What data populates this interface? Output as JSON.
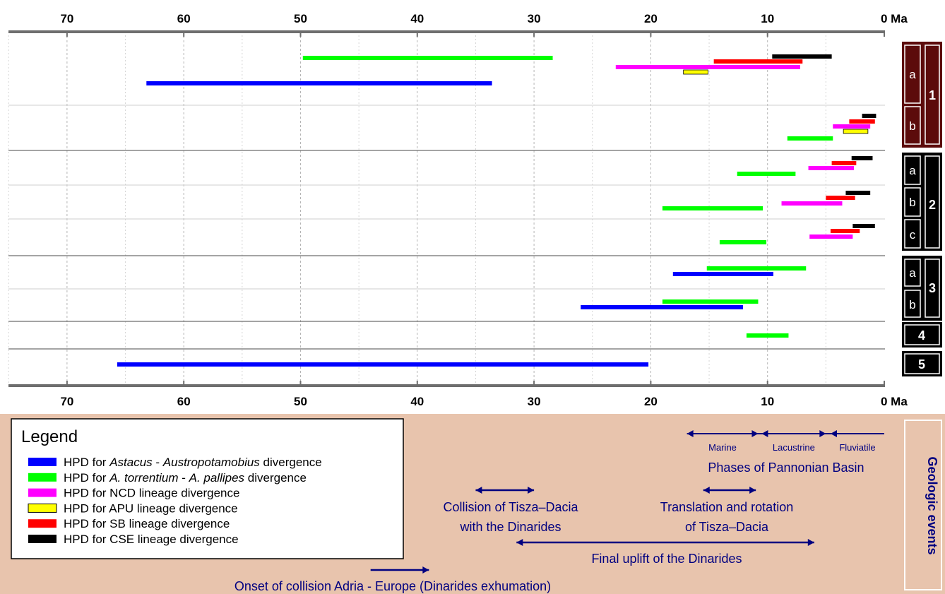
{
  "chart_data": {
    "type": "range-bar",
    "axis": {
      "unit_label": "Ma",
      "ticks": [
        70,
        60,
        50,
        40,
        30,
        20,
        10,
        0
      ],
      "xlim": [
        77,
        0
      ],
      "grid": "dotted vertical at every 5 Ma"
    },
    "colors": {
      "blue": "#0000ff",
      "green": "#00ff00",
      "magenta": "#ff00ff",
      "yellow": "#ffff00",
      "red": "#ff0000",
      "black": "#000000",
      "panel": "#e8c4ad",
      "navy": "#000080",
      "dark_red": "#5c0b0b"
    },
    "legend": {
      "title": "Legend",
      "placement": "bottom-left",
      "items": [
        {
          "color": "blue",
          "parts": [
            [
              "HPD for ",
              ""
            ],
            [
              "Astacus",
              "i"
            ],
            [
              " - ",
              ""
            ],
            [
              "Austropotamobius",
              "i"
            ],
            [
              " divergence",
              ""
            ]
          ]
        },
        {
          "color": "green",
          "parts": [
            [
              "HPD for ",
              ""
            ],
            [
              "A. torrentium",
              "i"
            ],
            [
              " - ",
              ""
            ],
            [
              "A. pallipes",
              "i"
            ],
            [
              " divergence",
              ""
            ]
          ]
        },
        {
          "color": "magenta",
          "parts": [
            [
              "HPD for NCD lineage divergence",
              ""
            ]
          ]
        },
        {
          "color": "yellow",
          "parts": [
            [
              "HPD for APU lineage divergence",
              ""
            ]
          ]
        },
        {
          "color": "red",
          "parts": [
            [
              "HPD for SB lineage divergence",
              ""
            ]
          ]
        },
        {
          "color": "black",
          "parts": [
            [
              "HPD for CSE lineage divergence",
              ""
            ]
          ]
        }
      ]
    },
    "scenarios": [
      {
        "id": "1",
        "sub": [
          {
            "id": "a",
            "bars": [
              {
                "color": "black",
                "from": 9.6,
                "to": 4.5
              },
              {
                "color": "red",
                "from": 14.6,
                "to": 7.0
              },
              {
                "color": "magenta",
                "from": 23.0,
                "to": 7.2
              },
              {
                "color": "green",
                "from": 49.8,
                "to": 28.4
              },
              {
                "color": "yellow",
                "from": 17.2,
                "to": 15.1
              },
              {
                "color": "blue",
                "from": 63.2,
                "to": 33.6
              }
            ]
          },
          {
            "id": "b",
            "bars": [
              {
                "color": "black",
                "from": 1.9,
                "to": 0.7
              },
              {
                "color": "red",
                "from": 3.0,
                "to": 0.8
              },
              {
                "color": "magenta",
                "from": 4.4,
                "to": 1.2
              },
              {
                "color": "yellow",
                "from": 3.5,
                "to": 1.4
              },
              {
                "color": "green",
                "from": 8.3,
                "to": 4.4
              }
            ]
          }
        ]
      },
      {
        "id": "2",
        "sub": [
          {
            "id": "a",
            "bars": [
              {
                "color": "black",
                "from": 2.8,
                "to": 1.0
              },
              {
                "color": "red",
                "from": 4.5,
                "to": 2.4
              },
              {
                "color": "magenta",
                "from": 6.5,
                "to": 2.6
              },
              {
                "color": "green",
                "from": 12.6,
                "to": 7.6
              }
            ]
          },
          {
            "id": "b",
            "bars": [
              {
                "color": "black",
                "from": 3.3,
                "to": 1.2
              },
              {
                "color": "red",
                "from": 5.0,
                "to": 2.5
              },
              {
                "color": "magenta",
                "from": 8.8,
                "to": 3.6
              },
              {
                "color": "green",
                "from": 19.0,
                "to": 10.4
              }
            ]
          },
          {
            "id": "c",
            "bars": [
              {
                "color": "black",
                "from": 2.7,
                "to": 0.8
              },
              {
                "color": "red",
                "from": 4.6,
                "to": 2.1
              },
              {
                "color": "magenta",
                "from": 6.4,
                "to": 2.7
              },
              {
                "color": "green",
                "from": 14.1,
                "to": 10.1
              }
            ]
          }
        ]
      },
      {
        "id": "3",
        "sub": [
          {
            "id": "a",
            "bars": [
              {
                "color": "green",
                "from": 15.2,
                "to": 6.7
              },
              {
                "color": "blue",
                "from": 18.1,
                "to": 9.5
              }
            ]
          },
          {
            "id": "b",
            "bars": [
              {
                "color": "green",
                "from": 19.0,
                "to": 10.8
              },
              {
                "color": "blue",
                "from": 26.0,
                "to": 12.1
              }
            ]
          }
        ]
      },
      {
        "id": "4",
        "sub": [
          {
            "id": "",
            "bars": [
              {
                "color": "green",
                "from": 11.8,
                "to": 8.2
              }
            ]
          }
        ]
      },
      {
        "id": "5",
        "sub": [
          {
            "id": "",
            "bars": [
              {
                "color": "blue",
                "from": 65.7,
                "to": 20.2
              }
            ]
          }
        ]
      }
    ],
    "geologic_events": {
      "side_label": "Geologic events",
      "pannonian": {
        "title": "Phases of Pannonian Basin",
        "phases": [
          {
            "label": "Marine",
            "from": 16.9,
            "to": 10.8
          },
          {
            "label": "Lacustrine",
            "from": 10.5,
            "to": 5.0
          },
          {
            "label": "Fluviatile",
            "from": 4.6,
            "to": 0.0
          }
        ]
      },
      "events": [
        {
          "lines": [
            "Collision of Tisza–Dacia",
            "with the Dinarides"
          ],
          "from": 35.0,
          "to": 30.0,
          "arrows": "both"
        },
        {
          "lines": [
            "Translation and rotation",
            "of Tisza–Dacia"
          ],
          "from": 15.5,
          "to": 11.0,
          "arrows": "both"
        },
        {
          "lines": [
            "Final uplift of the Dinarides"
          ],
          "from": 31.5,
          "to": 6.0,
          "arrows": "both"
        },
        {
          "lines": [
            "Onset of collision Adria - Europe (Dinarides exhumation)"
          ],
          "from": 44.0,
          "to": 39.0,
          "arrows": "end"
        }
      ]
    }
  }
}
